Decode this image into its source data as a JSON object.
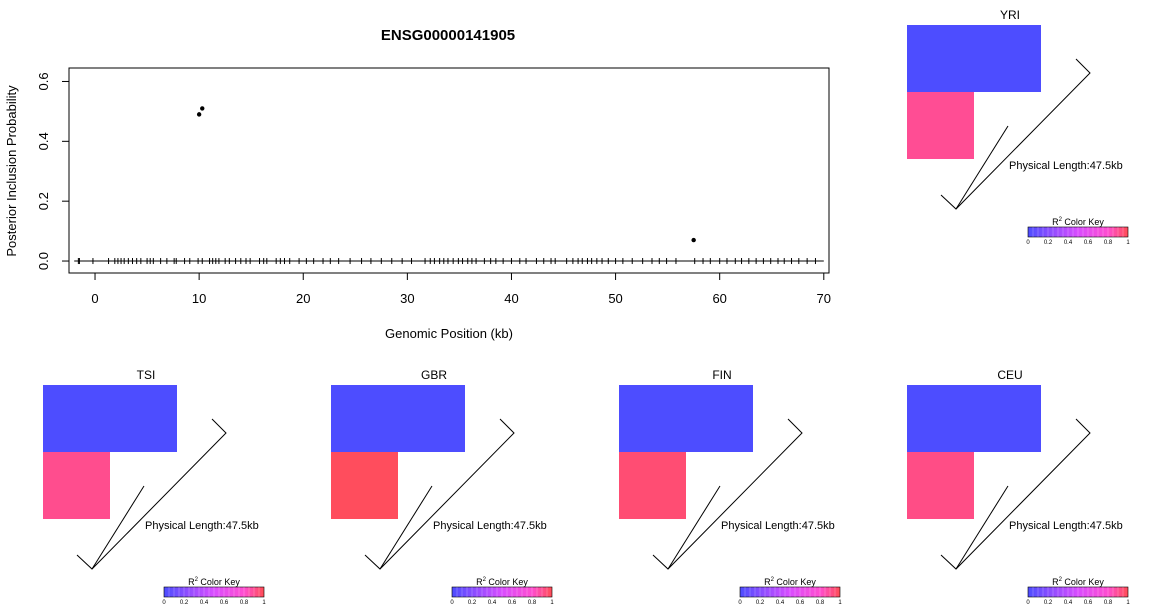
{
  "chart_data": [
    {
      "type": "scatter",
      "title": "ENSG00000141905",
      "xlabel": "Genomic Position (kb)",
      "ylabel": "Posterior Inclusion Probability",
      "xlim": [
        -2.5,
        70.5
      ],
      "ylim": [
        -0.04,
        0.645
      ],
      "xticks": [
        0,
        10,
        20,
        30,
        40,
        50,
        60,
        70
      ],
      "yticks": [
        0.0,
        0.2,
        0.4,
        0.6
      ],
      "ytick_labels": [
        "0.0",
        "0.2",
        "0.4",
        "0.6"
      ],
      "grid": false,
      "points": [
        {
          "x": 10.0,
          "y": 0.49
        },
        {
          "x": 10.3,
          "y": 0.51
        },
        {
          "x": 57.5,
          "y": 0.07
        }
      ],
      "rug_x": [
        -1.6,
        -1.5,
        -0.2,
        1.3,
        1.9,
        2.2,
        2.5,
        2.8,
        3.2,
        3.6,
        4.0,
        4.4,
        5.0,
        5.3,
        5.6,
        6.3,
        6.9,
        7.6,
        7.8,
        8.6,
        9.1,
        9.9,
        10.3,
        11.0,
        11.3,
        11.6,
        11.9,
        12.5,
        12.9,
        13.5,
        14.0,
        14.5,
        14.9,
        15.8,
        16.2,
        16.5,
        17.4,
        17.8,
        18.2,
        18.7,
        19.6,
        20.3,
        21.0,
        21.9,
        22.6,
        23.4,
        24.5,
        25.6,
        26.5,
        27.5,
        28.5,
        29.5,
        30.4,
        31.7,
        32.2,
        32.6,
        33.1,
        33.5,
        33.9,
        34.4,
        34.9,
        35.3,
        35.8,
        36.2,
        36.6,
        37.4,
        38.0,
        38.5,
        39.2,
        40.0,
        40.8,
        41.4,
        42.4,
        43.1,
        43.8,
        44.2,
        45.3,
        45.9,
        46.4,
        46.8,
        47.3,
        47.7,
        48.2,
        48.7,
        49.3,
        50.0,
        50.7,
        51.6,
        52.6,
        53.5,
        54.2,
        54.9,
        55.8,
        57.6,
        58.4,
        59.1,
        60.0,
        60.7,
        61.5,
        62.1,
        62.8,
        63.5,
        64.2,
        64.9,
        65.6,
        66.2,
        66.9,
        67.6,
        68.4,
        69.2
      ]
    },
    {
      "type": "heatmap",
      "title": "YRI",
      "length_label": "Physical Length:47.5kb",
      "key_title_base": "R",
      "key_title_sup": "2",
      "key_title_rest": " Color Key",
      "key_ticks": [
        "0",
        "0.2",
        "0.4",
        "0.6",
        "0.8",
        "1"
      ],
      "key_colors": [
        "#4d4dff",
        "#ff4d55"
      ],
      "r2": [
        [
          0.0,
          0.0
        ],
        [
          0.78,
          null
        ]
      ],
      "cell_colors": [
        [
          "#4d4dff",
          "#4d4dff"
        ],
        [
          "#ff4d94",
          null
        ]
      ]
    },
    {
      "type": "heatmap",
      "title": "TSI",
      "length_label": "Physical Length:47.5kb",
      "key_title_base": "R",
      "key_title_sup": "2",
      "key_title_rest": " Color Key",
      "key_ticks": [
        "0",
        "0.2",
        "0.4",
        "0.6",
        "0.8",
        "1"
      ],
      "key_colors": [
        "#4d4dff",
        "#ff4d55"
      ],
      "r2": [
        [
          0.0,
          0.0
        ],
        [
          0.78,
          null
        ]
      ],
      "cell_colors": [
        [
          "#4d4dff",
          "#4d4dff"
        ],
        [
          "#ff4d8e",
          null
        ]
      ]
    },
    {
      "type": "heatmap",
      "title": "GBR",
      "length_label": "Physical Length:47.5kb",
      "key_title_base": "R",
      "key_title_sup": "2",
      "key_title_rest": " Color Key",
      "key_ticks": [
        "0",
        "0.2",
        "0.4",
        "0.6",
        "0.8",
        "1"
      ],
      "key_colors": [
        "#4d4dff",
        "#ff4d55"
      ],
      "r2": [
        [
          0.0,
          0.0
        ],
        [
          0.95,
          null
        ]
      ],
      "cell_colors": [
        [
          "#4d4dff",
          "#4d4dff"
        ],
        [
          "#ff4d5d",
          null
        ]
      ]
    },
    {
      "type": "heatmap",
      "title": "FIN",
      "length_label": "Physical Length:47.5kb",
      "key_title_base": "R",
      "key_title_sup": "2",
      "key_title_rest": " Color Key",
      "key_ticks": [
        "0",
        "0.2",
        "0.4",
        "0.6",
        "0.8",
        "1"
      ],
      "key_colors": [
        "#4d4dff",
        "#ff4d55"
      ],
      "r2": [
        [
          0.0,
          0.0
        ],
        [
          0.88,
          null
        ]
      ],
      "cell_colors": [
        [
          "#4d4dff",
          "#4d4dff"
        ],
        [
          "#ff4d73",
          null
        ]
      ]
    },
    {
      "type": "heatmap",
      "title": "CEU",
      "length_label": "Physical Length:47.5kb",
      "key_title_base": "R",
      "key_title_sup": "2",
      "key_title_rest": " Color Key",
      "key_ticks": [
        "0",
        "0.2",
        "0.4",
        "0.6",
        "0.8",
        "1"
      ],
      "key_colors": [
        "#4d4dff",
        "#ff4d55"
      ],
      "r2": [
        [
          0.0,
          0.0
        ],
        [
          0.8,
          null
        ]
      ],
      "cell_colors": [
        [
          "#4d4dff",
          "#4d4dff"
        ],
        [
          "#ff4d86",
          null
        ]
      ]
    }
  ]
}
